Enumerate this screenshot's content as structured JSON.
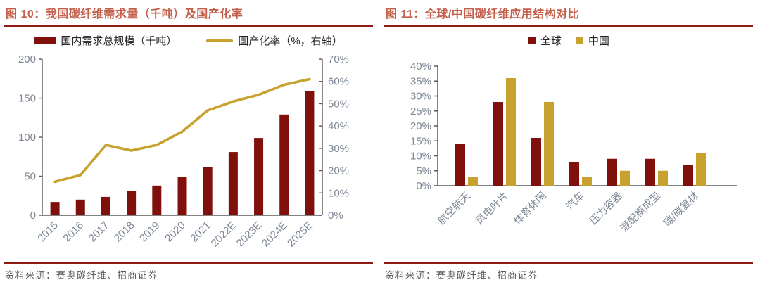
{
  "colors": {
    "maroon": "#7F100B",
    "gold": "#C7A22F",
    "title_red": "#C2604C",
    "rule_red": "#8B1A10",
    "axis": "#595959",
    "tick_label": "#7C8695",
    "legend_text": "#262626",
    "source_text": "#595959"
  },
  "figure10": {
    "title": "图 10：我国碳纤维需求量（千吨）及国产化率",
    "legend": [
      {
        "label": "国内需求总规模（千吨）"
      },
      {
        "label": "国产化率（%，右轴）"
      }
    ],
    "source": "资料来源：赛奥碳纤维、招商证券"
  },
  "figure11": {
    "title": "图 11：全球/中国碳纤维应用结构对比",
    "legend": [
      {
        "label": "全球"
      },
      {
        "label": "中国"
      }
    ],
    "source": "资料来源：赛奥碳纤维、招商证券"
  },
  "chart_data": [
    {
      "id": "chart-demand-rate",
      "type": "bar",
      "title": "我国碳纤维需求量（千吨）及国产化率",
      "categories": [
        "2015",
        "2016",
        "2017",
        "2018",
        "2019",
        "2020",
        "2021",
        "2022E",
        "2023E",
        "2024E",
        "2025E"
      ],
      "series": [
        {
          "name": "国内需求总规模（千吨）",
          "type": "bar",
          "axis": "left",
          "values": [
            17,
            20,
            23.5,
            31,
            38,
            49,
            62,
            81,
            99,
            129,
            159
          ]
        },
        {
          "name": "国产化率（%，右轴）",
          "type": "line",
          "axis": "right",
          "values": [
            15,
            18,
            31.5,
            29,
            31.5,
            37.5,
            47,
            51,
            54,
            58.5,
            61
          ]
        }
      ],
      "left_axis": {
        "min": 0,
        "max": 200,
        "tick_step": 50,
        "tick_labels": [
          "0",
          "50",
          "100",
          "150",
          "200"
        ]
      },
      "right_axis": {
        "min": 0,
        "max": 70,
        "tick_step": 10,
        "tick_labels": [
          "0%",
          "10%",
          "20%",
          "30%",
          "40%",
          "50%",
          "60%",
          "70%"
        ]
      },
      "grid": false,
      "legend_position": "top"
    },
    {
      "id": "chart-application",
      "type": "bar",
      "title": "全球/中国碳纤维应用结构对比",
      "categories": [
        "航空航天",
        "风电叶片",
        "体育休闲",
        "汽车",
        "压力容器",
        "混配模成型",
        "碳/碳复材"
      ],
      "series": [
        {
          "name": "全球",
          "values": [
            14,
            28,
            16,
            8,
            9,
            9,
            7
          ]
        },
        {
          "name": "中国",
          "values": [
            3,
            36,
            28,
            3,
            5,
            5,
            11
          ]
        }
      ],
      "y_axis": {
        "min": 0,
        "max": 40,
        "tick_step": 5,
        "tick_labels": [
          "0%",
          "5%",
          "10%",
          "15%",
          "20%",
          "25%",
          "30%",
          "35%",
          "40%"
        ]
      },
      "grid": false,
      "legend_position": "top"
    }
  ]
}
